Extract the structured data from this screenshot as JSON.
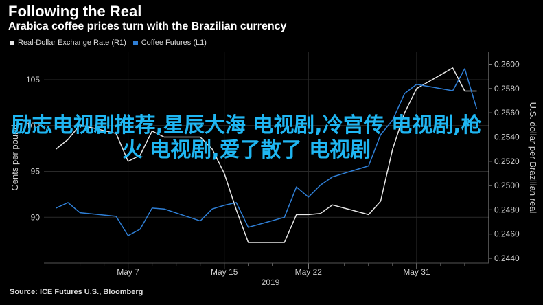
{
  "header": {
    "title": "Following the Real",
    "subtitle": "Arabica coffee prices turn with the Brazilian currency"
  },
  "overlay_text": "励志电视剧推荐,星辰大海 电视剧,冷宫传 电视剧,枪火 电视剧,爱了散了 电视剧",
  "footer": {
    "source": "Source: ICE Futures U.S., Bloomberg"
  },
  "colors": {
    "background": "#000000",
    "coffee": "#2f7fd6",
    "brl": "#e6e6e6",
    "grid": "#2a2a2a",
    "axis_text": "#cfcfcf",
    "overlay": "#1fb6f2"
  },
  "chart_data": {
    "type": "line",
    "legend_position": "top-left",
    "grid": true,
    "x": [
      "2019-05-01",
      "2019-05-02",
      "2019-05-03",
      "2019-05-06",
      "2019-05-07",
      "2019-05-08",
      "2019-05-09",
      "2019-05-10",
      "2019-05-13",
      "2019-05-14",
      "2019-05-15",
      "2019-05-16",
      "2019-05-17",
      "2019-05-20",
      "2019-05-21",
      "2019-05-22",
      "2019-05-23",
      "2019-05-24",
      "2019-05-27",
      "2019-05-28",
      "2019-05-29",
      "2019-05-30",
      "2019-05-31",
      "2019-06-03",
      "2019-06-04",
      "2019-06-05"
    ],
    "xlim": [
      "2019-04-30",
      "2019-06-06"
    ],
    "x_ticks": [
      {
        "date": "2019-05-07",
        "label": "May 7"
      },
      {
        "date": "2019-05-15",
        "label": "May 15"
      },
      {
        "date": "2019-05-22",
        "label": "May 22"
      },
      {
        "date": "2019-05-31",
        "label": "May 31"
      }
    ],
    "x_minor_ticks": [
      "2019-05-01",
      "2019-05-03",
      "2019-05-05",
      "2019-05-09",
      "2019-05-11",
      "2019-05-13",
      "2019-05-17",
      "2019-05-19",
      "2019-05-25",
      "2019-05-27",
      "2019-05-29",
      "2019-06-02",
      "2019-06-04"
    ],
    "year_label": "2019",
    "left_axis": {
      "label": "Cents per pound",
      "ylim": [
        85,
        108
      ],
      "ticks": [
        90,
        95,
        100,
        105
      ],
      "tick_labels": [
        "90",
        "95",
        "100",
        "105"
      ]
    },
    "right_axis": {
      "label": "U.S. dollar per Brazilian real",
      "ylim": [
        0.2436,
        0.261
      ],
      "ticks": [
        0.244,
        0.246,
        0.248,
        0.25,
        0.252,
        0.254,
        0.256,
        0.258,
        0.26
      ],
      "tick_labels": [
        "0.2440",
        "0.2460",
        "0.2480",
        "0.2500",
        "0.2520",
        "0.2540",
        "0.2560",
        "0.2580",
        "0.2600"
      ]
    },
    "series": [
      {
        "name": "Real-Dollar Exchange Rate (R1)",
        "axis": "right",
        "color": "#e6e6e6",
        "values": [
          0.253,
          0.2538,
          0.255,
          0.2543,
          0.252,
          0.2525,
          0.2545,
          0.254,
          0.254,
          0.253,
          0.251,
          0.248,
          0.2453,
          0.2453,
          0.2476,
          0.2476,
          0.2477,
          0.2484,
          0.2476,
          0.2487,
          0.253,
          0.256,
          0.258,
          0.2597,
          0.2578,
          0.2578
        ]
      },
      {
        "name": "Coffee Futures (L1)",
        "axis": "left",
        "color": "#2f7fd6",
        "values": [
          91.0,
          91.6,
          90.5,
          90.1,
          88.0,
          88.7,
          91.0,
          90.9,
          89.6,
          90.9,
          91.3,
          91.6,
          88.9,
          90.0,
          93.3,
          92.2,
          93.5,
          94.4,
          95.6,
          99.0,
          100.6,
          103.5,
          104.5,
          103.8,
          106.2,
          101.8
        ]
      }
    ]
  }
}
